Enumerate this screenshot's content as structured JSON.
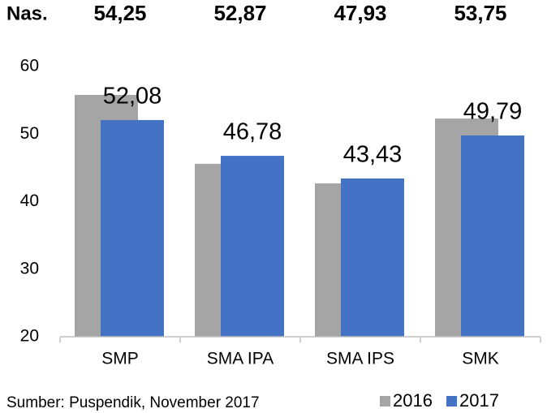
{
  "chart_data": {
    "type": "bar",
    "national_label": "Nas.",
    "national_values": [
      "54,25",
      "52,87",
      "47,93",
      "53,75"
    ],
    "categories": [
      "SMP",
      "SMA IPA",
      "SMA IPS",
      "SMK"
    ],
    "series": [
      {
        "name": "2016",
        "color": "#a5a5a5",
        "values": [
          55.8,
          45.6,
          42.7,
          52.3
        ]
      },
      {
        "name": "2017",
        "color": "#4472c4",
        "values": [
          52.08,
          46.78,
          43.43,
          49.79
        ],
        "value_labels": [
          "52,08",
          "46,78",
          "43,43",
          "49,79"
        ]
      }
    ],
    "ylim": [
      20,
      60
    ],
    "yticks": [
      20,
      30,
      40,
      50,
      60
    ],
    "grid": false,
    "source": "Sumber: Puspendik, November 2017"
  }
}
